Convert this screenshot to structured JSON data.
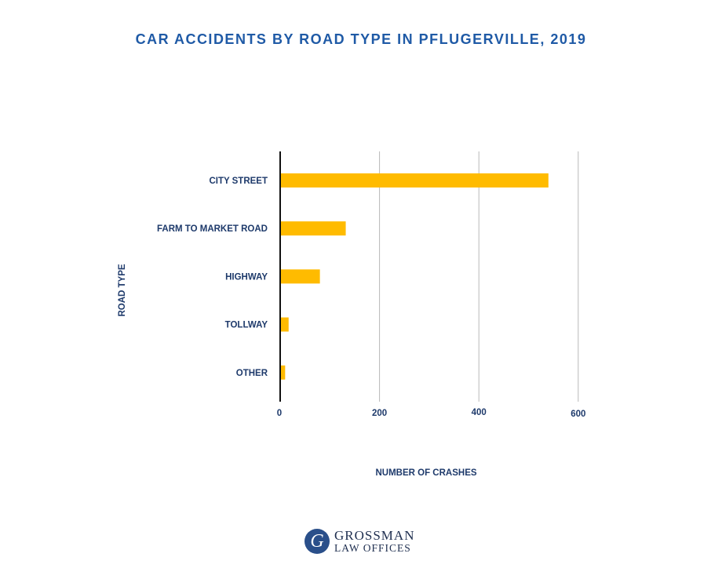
{
  "chart_data": {
    "type": "bar",
    "orientation": "horizontal",
    "title": "CAR ACCIDENTS BY ROAD TYPE IN PFLUGERVILLE, 2019",
    "xlabel": "NUMBER OF CRASHES",
    "ylabel": "ROAD TYPE",
    "categories": [
      "CITY STREET",
      "FARM TO MARKET ROAD",
      "HIGHWAY",
      "TOLLWAY",
      "OTHER"
    ],
    "values": [
      540,
      132,
      80,
      17,
      10
    ],
    "xlim": [
      0,
      600
    ],
    "xticks": [
      "0",
      "200",
      "400",
      "600"
    ],
    "grid": "vertical",
    "bar_color": "#ffbb00",
    "text_color": "#1e3a6b",
    "title_color": "#1f5aa6"
  },
  "logo": {
    "mark": "G",
    "line1": "GROSSMAN",
    "line2": "LAW OFFICES"
  }
}
